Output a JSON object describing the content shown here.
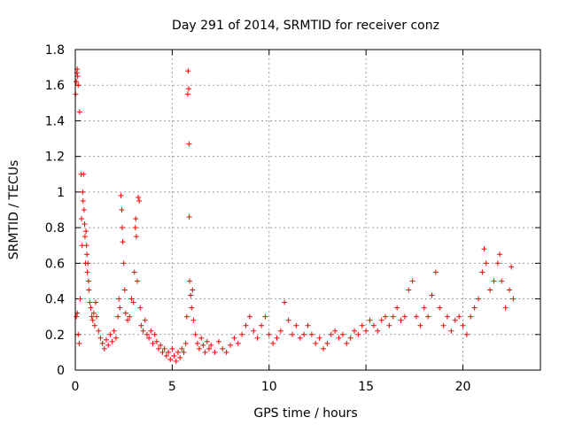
{
  "chart_data": {
    "type": "scatter",
    "title": "Day 291 of 2014, SRMTID for receiver conz",
    "xlabel": "GPS time / hours",
    "ylabel": "SRMTID / TECUs",
    "xlim": [
      0,
      24
    ],
    "ylim": [
      0,
      1.8
    ],
    "grid": true,
    "marker": "+",
    "marker_color": "#ff0000",
    "x_ticks": [
      0,
      5,
      10,
      15,
      20
    ],
    "x_tick_labels": [
      "0",
      "5",
      "10",
      "15",
      "20"
    ],
    "y_ticks": [
      0,
      0.2,
      0.4,
      0.6,
      0.8,
      1.0,
      1.2,
      1.4,
      1.6,
      1.8
    ],
    "y_tick_labels": [
      "0",
      "0.2",
      "0.4",
      "0.6",
      "0.8",
      "1",
      "1.2",
      "1.4",
      "1.6",
      "1.8"
    ],
    "series": [
      {
        "name": "SRMTID",
        "points": [
          [
            0.02,
            1.55
          ],
          [
            0.05,
            1.62
          ],
          [
            0.08,
            1.67
          ],
          [
            0.1,
            1.69
          ],
          [
            0.12,
            1.65
          ],
          [
            0.15,
            1.6
          ],
          [
            0.05,
            0.3
          ],
          [
            0.1,
            0.32
          ],
          [
            0.15,
            0.2
          ],
          [
            0.2,
            0.15
          ],
          [
            0.22,
            1.45
          ],
          [
            0.25,
            0.4
          ],
          [
            0.3,
            1.1
          ],
          [
            0.32,
            0.85
          ],
          [
            0.35,
            0.7
          ],
          [
            0.38,
            1.0
          ],
          [
            0.4,
            0.95
          ],
          [
            0.42,
            1.1
          ],
          [
            0.45,
            0.9
          ],
          [
            0.48,
            0.82
          ],
          [
            0.5,
            0.75
          ],
          [
            0.52,
            0.6
          ],
          [
            0.55,
            0.78
          ],
          [
            0.58,
            0.7
          ],
          [
            0.6,
            0.65
          ],
          [
            0.62,
            0.55
          ],
          [
            0.65,
            0.6
          ],
          [
            0.68,
            0.5
          ],
          [
            0.7,
            0.45
          ],
          [
            0.75,
            0.38
          ],
          [
            0.8,
            0.35
          ],
          [
            0.85,
            0.3
          ],
          [
            0.9,
            0.28
          ],
          [
            0.95,
            0.32
          ],
          [
            1.0,
            0.25
          ],
          [
            1.05,
            0.38
          ],
          [
            1.1,
            0.3
          ],
          [
            1.2,
            0.22
          ],
          [
            1.3,
            0.18
          ],
          [
            1.4,
            0.15
          ],
          [
            1.5,
            0.12
          ],
          [
            1.6,
            0.17
          ],
          [
            1.7,
            0.14
          ],
          [
            1.8,
            0.2
          ],
          [
            1.9,
            0.16
          ],
          [
            2.0,
            0.22
          ],
          [
            2.1,
            0.18
          ],
          [
            2.2,
            0.3
          ],
          [
            2.25,
            0.4
          ],
          [
            2.3,
            0.35
          ],
          [
            2.35,
            0.98
          ],
          [
            2.4,
            0.9
          ],
          [
            2.42,
            0.8
          ],
          [
            2.45,
            0.72
          ],
          [
            2.5,
            0.6
          ],
          [
            2.55,
            0.45
          ],
          [
            2.6,
            0.32
          ],
          [
            2.7,
            0.28
          ],
          [
            2.8,
            0.3
          ],
          [
            2.9,
            0.4
          ],
          [
            3.0,
            0.38
          ],
          [
            3.05,
            0.55
          ],
          [
            3.1,
            0.8
          ],
          [
            3.12,
            0.85
          ],
          [
            3.15,
            0.75
          ],
          [
            3.2,
            0.5
          ],
          [
            3.25,
            0.97
          ],
          [
            3.3,
            0.95
          ],
          [
            3.35,
            0.35
          ],
          [
            3.4,
            0.25
          ],
          [
            3.5,
            0.22
          ],
          [
            3.6,
            0.28
          ],
          [
            3.7,
            0.2
          ],
          [
            3.8,
            0.18
          ],
          [
            3.9,
            0.22
          ],
          [
            4.0,
            0.15
          ],
          [
            4.1,
            0.2
          ],
          [
            4.2,
            0.16
          ],
          [
            4.3,
            0.12
          ],
          [
            4.4,
            0.14
          ],
          [
            4.5,
            0.1
          ],
          [
            4.6,
            0.12
          ],
          [
            4.7,
            0.08
          ],
          [
            4.8,
            0.1
          ],
          [
            4.9,
            0.06
          ],
          [
            5.0,
            0.12
          ],
          [
            5.1,
            0.08
          ],
          [
            5.2,
            0.05
          ],
          [
            5.3,
            0.1
          ],
          [
            5.4,
            0.07
          ],
          [
            5.5,
            0.12
          ],
          [
            5.6,
            0.1
          ],
          [
            5.7,
            0.15
          ],
          [
            5.75,
            0.3
          ],
          [
            5.8,
            1.55
          ],
          [
            5.82,
            1.68
          ],
          [
            5.85,
            1.58
          ],
          [
            5.87,
            1.27
          ],
          [
            5.88,
            0.86
          ],
          [
            5.9,
            0.5
          ],
          [
            5.95,
            0.42
          ],
          [
            6.0,
            0.35
          ],
          [
            6.05,
            0.45
          ],
          [
            6.1,
            0.28
          ],
          [
            6.2,
            0.2
          ],
          [
            6.3,
            0.15
          ],
          [
            6.4,
            0.12
          ],
          [
            6.5,
            0.18
          ],
          [
            6.6,
            0.14
          ],
          [
            6.7,
            0.1
          ],
          [
            6.8,
            0.16
          ],
          [
            6.9,
            0.12
          ],
          [
            7.0,
            0.14
          ],
          [
            7.2,
            0.1
          ],
          [
            7.4,
            0.16
          ],
          [
            7.6,
            0.12
          ],
          [
            7.8,
            0.1
          ],
          [
            8.0,
            0.14
          ],
          [
            8.2,
            0.18
          ],
          [
            8.4,
            0.15
          ],
          [
            8.6,
            0.2
          ],
          [
            8.8,
            0.25
          ],
          [
            9.0,
            0.3
          ],
          [
            9.2,
            0.22
          ],
          [
            9.4,
            0.18
          ],
          [
            9.6,
            0.25
          ],
          [
            9.8,
            0.3
          ],
          [
            10.0,
            0.2
          ],
          [
            10.2,
            0.15
          ],
          [
            10.4,
            0.18
          ],
          [
            10.6,
            0.22
          ],
          [
            10.8,
            0.38
          ],
          [
            11.0,
            0.28
          ],
          [
            11.2,
            0.2
          ],
          [
            11.4,
            0.25
          ],
          [
            11.6,
            0.18
          ],
          [
            11.8,
            0.2
          ],
          [
            12.0,
            0.25
          ],
          [
            12.2,
            0.2
          ],
          [
            12.4,
            0.15
          ],
          [
            12.6,
            0.18
          ],
          [
            12.8,
            0.12
          ],
          [
            13.0,
            0.15
          ],
          [
            13.2,
            0.2
          ],
          [
            13.4,
            0.22
          ],
          [
            13.6,
            0.18
          ],
          [
            13.8,
            0.2
          ],
          [
            14.0,
            0.15
          ],
          [
            14.2,
            0.18
          ],
          [
            14.4,
            0.22
          ],
          [
            14.6,
            0.2
          ],
          [
            14.8,
            0.25
          ],
          [
            15.0,
            0.22
          ],
          [
            15.2,
            0.28
          ],
          [
            15.4,
            0.25
          ],
          [
            15.6,
            0.22
          ],
          [
            15.8,
            0.28
          ],
          [
            16.0,
            0.3
          ],
          [
            16.2,
            0.25
          ],
          [
            16.4,
            0.3
          ],
          [
            16.6,
            0.35
          ],
          [
            16.8,
            0.28
          ],
          [
            17.0,
            0.3
          ],
          [
            17.2,
            0.45
          ],
          [
            17.4,
            0.5
          ],
          [
            17.6,
            0.3
          ],
          [
            17.8,
            0.25
          ],
          [
            18.0,
            0.35
          ],
          [
            18.2,
            0.3
          ],
          [
            18.4,
            0.42
          ],
          [
            18.6,
            0.55
          ],
          [
            18.8,
            0.35
          ],
          [
            19.0,
            0.25
          ],
          [
            19.2,
            0.3
          ],
          [
            19.4,
            0.22
          ],
          [
            19.6,
            0.28
          ],
          [
            19.8,
            0.3
          ],
          [
            20.0,
            0.25
          ],
          [
            20.2,
            0.2
          ],
          [
            20.4,
            0.3
          ],
          [
            20.6,
            0.35
          ],
          [
            20.8,
            0.4
          ],
          [
            21.0,
            0.55
          ],
          [
            21.1,
            0.68
          ],
          [
            21.2,
            0.6
          ],
          [
            21.4,
            0.45
          ],
          [
            21.6,
            0.5
          ],
          [
            21.8,
            0.6
          ],
          [
            21.9,
            0.65
          ],
          [
            22.0,
            0.5
          ],
          [
            22.2,
            0.35
          ],
          [
            22.4,
            0.45
          ],
          [
            22.5,
            0.58
          ],
          [
            22.6,
            0.4
          ]
        ]
      }
    ]
  }
}
